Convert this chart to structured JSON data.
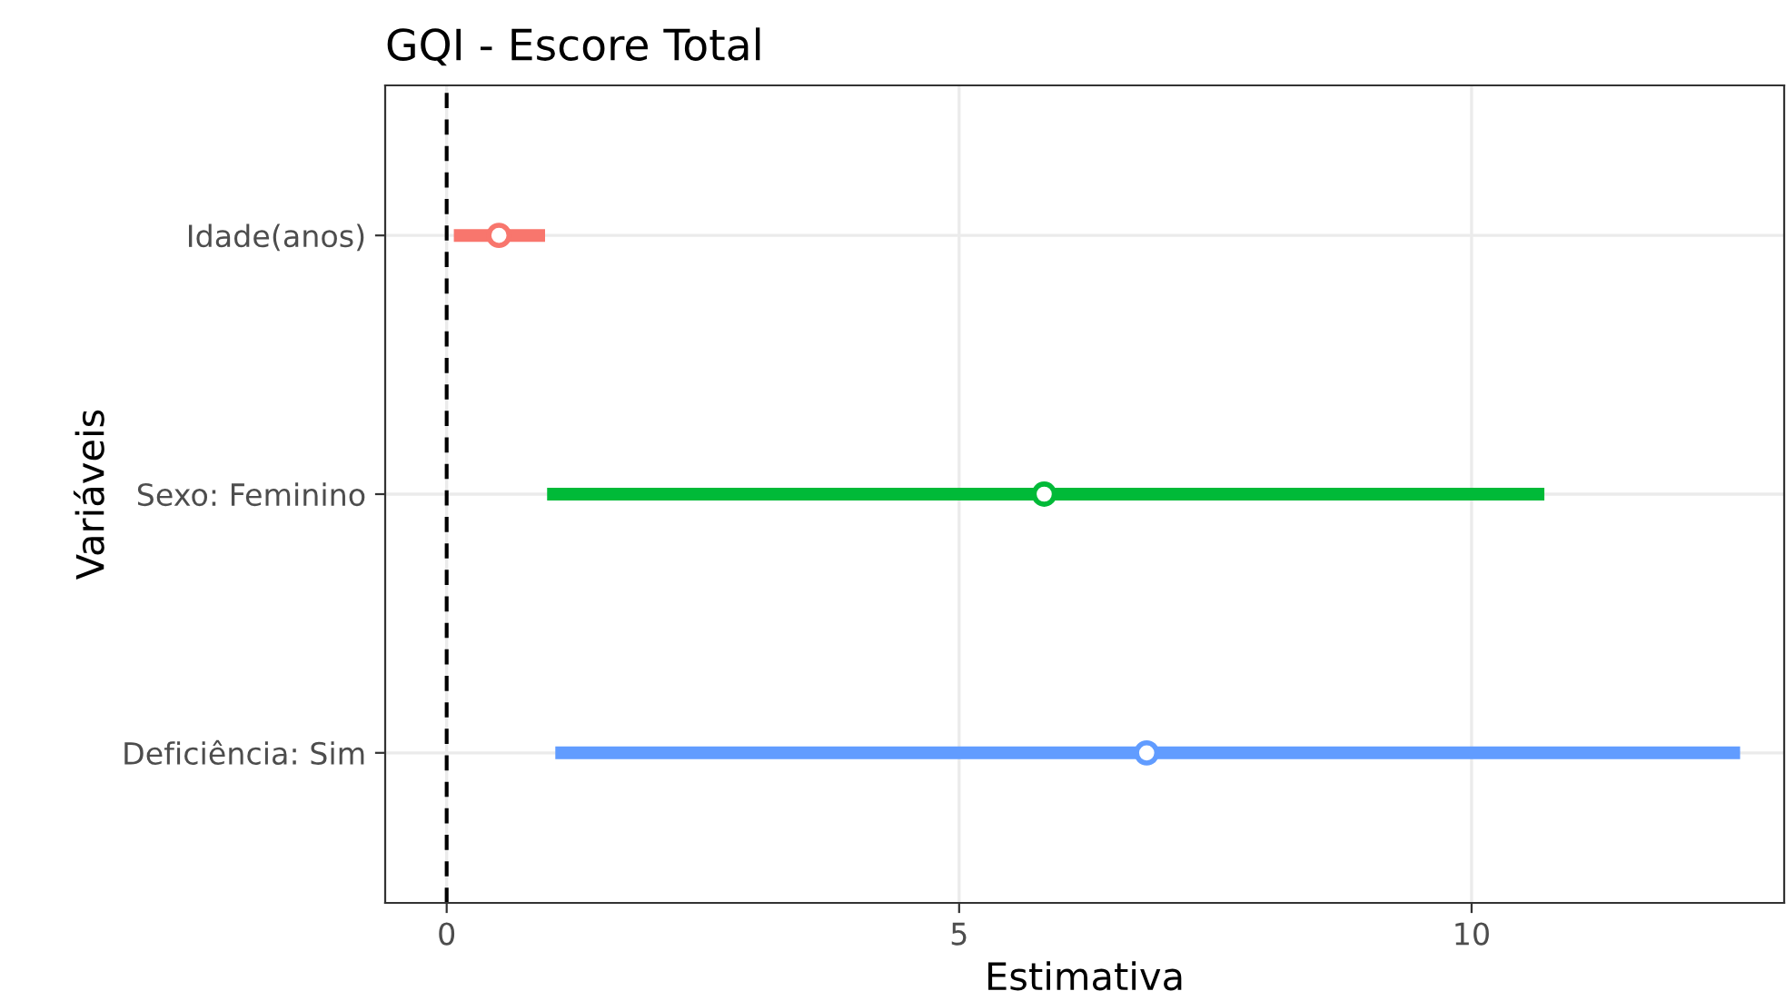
{
  "chart_data": {
    "type": "scatter",
    "orientation": "horizontal",
    "title": "GQI - Escore Total",
    "xlabel": "Estimativa",
    "ylabel": "Variáveis",
    "categories": [
      "Idade(anos)",
      "Sexo: Feminino",
      "Deficiência: Sim"
    ],
    "values": [
      0.51,
      5.83,
      6.83
    ],
    "errors": [
      [
        0.07,
        0.96
      ],
      [
        0.98,
        10.71
      ],
      [
        1.06,
        12.62
      ]
    ],
    "colors": [
      "#f8766d",
      "#00ba38",
      "#619cff"
    ],
    "xlim": [
      -0.6,
      13.05
    ],
    "xticks": [
      0,
      5,
      10
    ],
    "ref_lines": [
      {
        "axis": "x",
        "value": 0,
        "color": "#000000",
        "line_style": "dashed"
      }
    ],
    "grid": true,
    "marker": "circle"
  }
}
